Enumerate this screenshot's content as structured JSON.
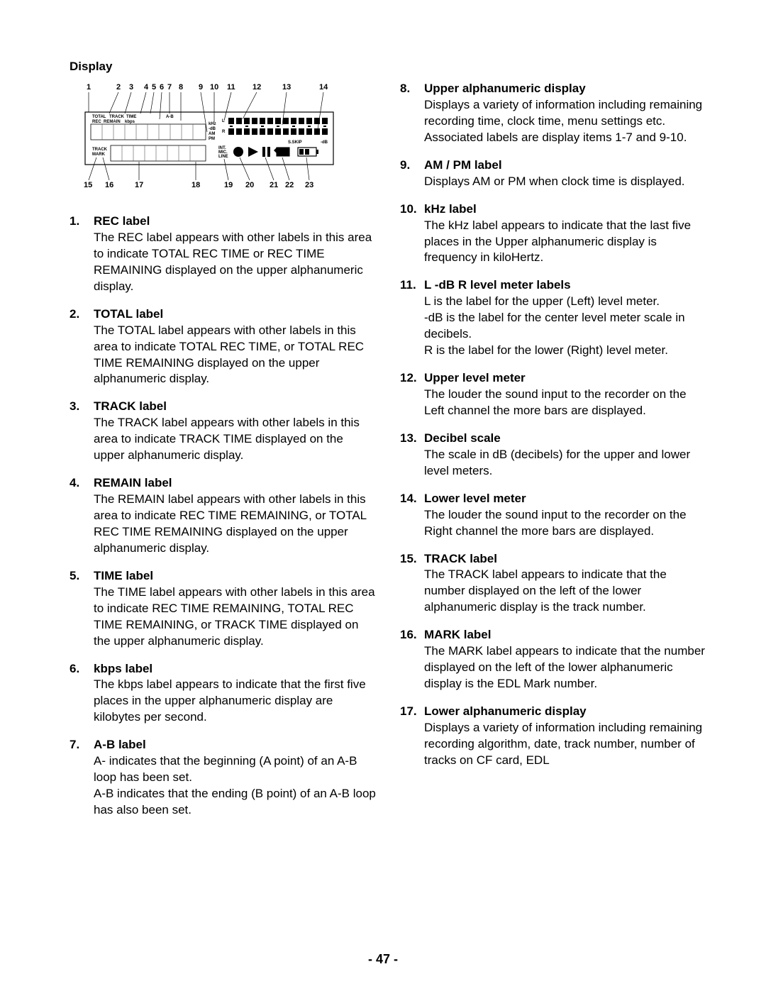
{
  "page": {
    "title": "Display",
    "number": "- 47 -"
  },
  "diagram": {
    "topNums": [
      "1",
      "2",
      "3",
      "4",
      "5",
      "6",
      "7",
      "8",
      "9",
      "10",
      "11",
      "12",
      "13",
      "14"
    ],
    "bottomNums": [
      "15",
      "16",
      "17",
      "18",
      "19",
      "20",
      "21",
      "22",
      "23"
    ],
    "labels": {
      "total": "TOTAL",
      "track": "TRACK",
      "time": "TIME",
      "rec": "REC",
      "remain": "REMAIN",
      "kbps": "kbps",
      "ab": "A-B",
      "track2": "TRACK",
      "mark": "MARK",
      "l": "L",
      "r": "R",
      "db": "-dB",
      "khz": "kHz",
      "am": "AM",
      "pm": "PM",
      "int": "INT.",
      "mic": "MIC.",
      "line": "LINE",
      "sskip": "S.SKIP",
      "db2": "-dB"
    }
  },
  "left": [
    {
      "n": "1.",
      "t": "REC label",
      "b": "The REC label appears with other labels in this area to indicate TOTAL REC TIME or REC TIME REMAINING displayed on the upper alphanumeric display."
    },
    {
      "n": "2.",
      "t": "TOTAL label",
      "b": "The TOTAL label appears with other labels in this area to indicate TOTAL REC TIME, or TOTAL REC TIME REMAINING displayed on the upper alphanumeric display."
    },
    {
      "n": "3.",
      "t": "TRACK label",
      "b": "The TRACK label appears with other labels in this area to indicate TRACK TIME displayed on the upper alphanumeric display."
    },
    {
      "n": "4.",
      "t": "REMAIN label",
      "b": "The REMAIN label appears with other labels in this area to indicate REC TIME REMAINING, or TOTAL REC TIME REMAINING displayed on the upper alphanumeric display."
    },
    {
      "n": "5.",
      "t": "TIME label",
      "b": "The TIME label appears with other labels in this area to indicate REC TIME REMAINING, TOTAL REC TIME REMAINING, or TRACK TIME displayed on the upper alphanumeric display."
    },
    {
      "n": "6.",
      "t": "kbps label",
      "b": "The kbps label appears to indicate that the first five places in the upper alphanumeric display are kilobytes per second."
    },
    {
      "n": "7.",
      "t": "A-B label",
      "b": "A- indicates that the beginning (A point) of an A-B loop has been set.\nA-B indicates that the ending (B point) of an A-B loop has also been set."
    }
  ],
  "right": [
    {
      "n": "8.",
      "t": "Upper alphanumeric display",
      "b": "Displays a variety of information including remaining recording time, clock time, menu settings etc. Associated labels are display items 1-7 and 9-10."
    },
    {
      "n": "9.",
      "t": "AM / PM label",
      "b": "Displays AM or PM when clock time is displayed."
    },
    {
      "n": "10.",
      "t": "kHz label",
      "b": "The kHz label appears to indicate that the last five places in the Upper alphanumeric display is frequency in kiloHertz."
    },
    {
      "n": "11.",
      "t": "L -dB R level meter labels",
      "b": "L is the label for the upper (Left) level meter.\n-dB is the label for the center level meter scale in decibels.\nR is the label for the lower (Right) level meter."
    },
    {
      "n": "12.",
      "t": "Upper level meter",
      "b": "The louder the sound input to the recorder on the Left channel the more bars are displayed."
    },
    {
      "n": "13.",
      "t": "Decibel scale",
      "b": "The scale in dB (decibels) for the upper and lower level meters."
    },
    {
      "n": "14.",
      "t": "Lower level meter",
      "b": "The louder the sound input to the recorder on the Right channel the more bars are displayed."
    },
    {
      "n": "15.",
      "t": "TRACK label",
      "b": "The TRACK label appears to indicate that the number displayed on the left of the lower alphanumeric display is the track number."
    },
    {
      "n": "16.",
      "t": "MARK label",
      "b": "The MARK label appears to indicate that the number displayed on the left of the lower alphanumeric display is the EDL Mark number."
    },
    {
      "n": "17.",
      "t": "Lower alphanumeric display",
      "b": "Displays a variety of information including remaining recording algorithm, date, track number, number of tracks on CF card, EDL"
    }
  ]
}
